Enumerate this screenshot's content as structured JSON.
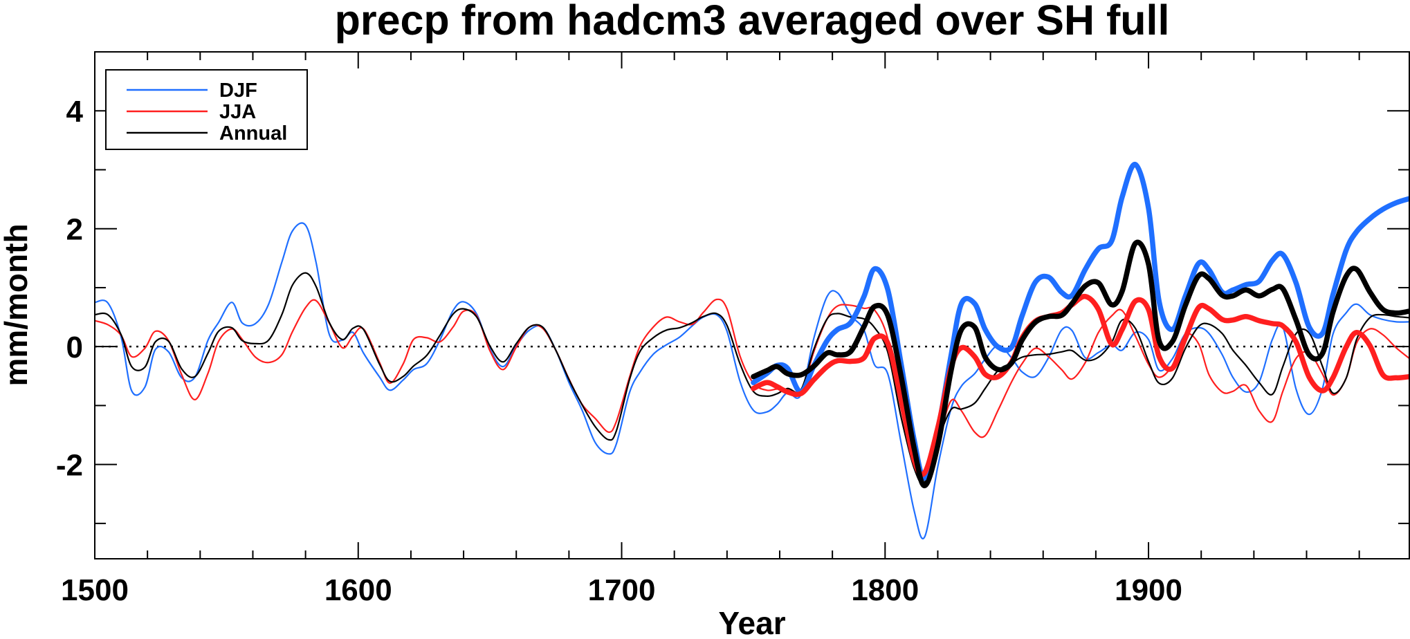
{
  "chart_data": {
    "type": "line",
    "title": "precp from hadcm3 averaged over SH full",
    "xlabel": "Year",
    "ylabel": "mm/month",
    "xlim": [
      1500,
      1999
    ],
    "ylim": [
      -3.6,
      5.0
    ],
    "x_ticks": [
      1500,
      1600,
      1700,
      1800,
      1900
    ],
    "y_ticks": [
      -2,
      0,
      2,
      4
    ],
    "zero_line": "dotted",
    "legend": "top-left",
    "legend_entries": [
      "DJF",
      "JJA",
      "Annual"
    ],
    "colors": {
      "DJF": "#1f6fff",
      "JJA": "#ff1f1f",
      "Annual": "#000000"
    },
    "series": [
      {
        "name": "DJF",
        "style": "thin",
        "color": "#1f6fff",
        "x": [
          1500,
          1505,
          1510,
          1514,
          1519,
          1523,
          1528,
          1533,
          1538,
          1543,
          1547,
          1552,
          1556,
          1561,
          1566,
          1571,
          1575,
          1580,
          1584,
          1589,
          1594,
          1598,
          1602,
          1608,
          1612,
          1617,
          1621,
          1626,
          1631,
          1636,
          1640,
          1645,
          1650,
          1655,
          1660,
          1665,
          1670,
          1675,
          1680,
          1685,
          1690,
          1695,
          1698,
          1703,
          1707,
          1712,
          1717,
          1722,
          1727,
          1731,
          1736,
          1740,
          1745,
          1750,
          1755,
          1759,
          1763,
          1768,
          1773,
          1778,
          1782,
          1787,
          1792,
          1796,
          1801,
          1806,
          1811,
          1815,
          1820,
          1825,
          1829,
          1834,
          1838,
          1843,
          1848,
          1852,
          1857,
          1862,
          1867,
          1871,
          1876,
          1881,
          1886,
          1890,
          1895,
          1900,
          1904,
          1909,
          1914,
          1919,
          1923,
          1928,
          1932,
          1937,
          1942,
          1947,
          1951,
          1956,
          1961,
          1966,
          1970,
          1975,
          1979,
          1984,
          1989,
          1994,
          1999
        ],
        "values": [
          0.75,
          0.74,
          0.16,
          -0.75,
          -0.69,
          -0.05,
          -0.09,
          -0.53,
          -0.52,
          0.11,
          0.41,
          0.75,
          0.4,
          0.39,
          0.72,
          1.43,
          1.96,
          2.06,
          1.43,
          0.21,
          0.11,
          0.24,
          -0.11,
          -0.51,
          -0.74,
          -0.57,
          -0.39,
          -0.29,
          0.11,
          0.61,
          0.76,
          0.55,
          -0.04,
          -0.34,
          0.01,
          0.28,
          0.33,
          -0.06,
          -0.61,
          -1.08,
          -1.63,
          -1.82,
          -1.65,
          -0.78,
          -0.43,
          -0.13,
          0.03,
          0.16,
          0.36,
          0.5,
          0.54,
          0.26,
          -0.6,
          -1.08,
          -1.11,
          -0.98,
          -0.78,
          -0.82,
          0.15,
          0.85,
          0.91,
          0.53,
          0.28,
          -0.31,
          -0.46,
          -1.61,
          -2.78,
          -3.23,
          -2.04,
          -1.06,
          -0.67,
          -0.46,
          -0.21,
          0.02,
          -0.19,
          -0.43,
          -0.51,
          -0.19,
          0.28,
          0.27,
          -0.19,
          -0.1,
          0.03,
          -0.06,
          0.24,
          0.12,
          -0.4,
          -0.21,
          0.22,
          0.32,
          0.22,
          -0.14,
          -0.52,
          -0.77,
          -0.6,
          0.12,
          0.33,
          -0.72,
          -1.15,
          -0.72,
          0.21,
          0.57,
          0.72,
          0.54,
          0.46,
          0.42,
          0.42
        ]
      },
      {
        "name": "JJA",
        "style": "thin",
        "color": "#ff1f1f",
        "x": [
          1500,
          1505,
          1510,
          1514,
          1519,
          1523,
          1528,
          1533,
          1538,
          1543,
          1547,
          1552,
          1556,
          1561,
          1566,
          1571,
          1575,
          1580,
          1584,
          1589,
          1594,
          1598,
          1602,
          1608,
          1612,
          1617,
          1621,
          1626,
          1631,
          1636,
          1640,
          1645,
          1650,
          1655,
          1660,
          1665,
          1670,
          1675,
          1680,
          1685,
          1690,
          1695,
          1698,
          1703,
          1707,
          1712,
          1717,
          1722,
          1727,
          1731,
          1736,
          1740,
          1745,
          1750,
          1755,
          1759,
          1763,
          1768,
          1773,
          1778,
          1782,
          1787,
          1792,
          1796,
          1801,
          1806,
          1811,
          1815,
          1820,
          1825,
          1829,
          1834,
          1838,
          1843,
          1848,
          1852,
          1857,
          1862,
          1867,
          1871,
          1876,
          1881,
          1886,
          1890,
          1895,
          1900,
          1904,
          1909,
          1914,
          1919,
          1923,
          1928,
          1932,
          1937,
          1942,
          1947,
          1951,
          1956,
          1961,
          1966,
          1970,
          1975,
          1979,
          1984,
          1989,
          1994,
          1999
        ],
        "values": [
          0.44,
          0.37,
          0.19,
          -0.17,
          -0.03,
          0.26,
          0.1,
          -0.48,
          -0.9,
          -0.45,
          0.09,
          0.3,
          0.12,
          -0.18,
          -0.27,
          -0.14,
          0.25,
          0.66,
          0.78,
          0.4,
          -0.02,
          0.18,
          0.3,
          -0.26,
          -0.62,
          -0.3,
          0.12,
          0.15,
          0.08,
          0.33,
          0.6,
          0.52,
          -0.07,
          -0.39,
          -0.01,
          0.33,
          0.31,
          -0.06,
          -0.55,
          -0.98,
          -1.22,
          -1.45,
          -1.27,
          -0.52,
          0.01,
          0.33,
          0.5,
          0.42,
          0.38,
          0.58,
          0.8,
          0.64,
          -0.17,
          -0.62,
          -0.74,
          -0.72,
          -0.73,
          -0.79,
          -0.08,
          0.47,
          0.69,
          0.7,
          0.65,
          0.62,
          0.14,
          -1.04,
          -1.91,
          -2.24,
          -1.61,
          -0.92,
          -1.09,
          -1.45,
          -1.51,
          -1.07,
          -0.6,
          -0.29,
          -0.03,
          -0.17,
          -0.39,
          -0.55,
          -0.27,
          0.24,
          0.52,
          0.61,
          0.18,
          -0.3,
          -0.52,
          -0.32,
          0.2,
          0.05,
          -0.48,
          -0.77,
          -0.76,
          -0.66,
          -1.09,
          -1.27,
          -0.76,
          -0.2,
          -0.11,
          -0.46,
          -0.82,
          -0.54,
          0.06,
          0.3,
          0.2,
          -0.02,
          -0.2
        ]
      },
      {
        "name": "Annual",
        "style": "thin",
        "color": "#000000",
        "x": [
          1500,
          1505,
          1510,
          1514,
          1519,
          1523,
          1528,
          1533,
          1538,
          1543,
          1547,
          1552,
          1556,
          1561,
          1566,
          1571,
          1575,
          1580,
          1584,
          1589,
          1594,
          1598,
          1602,
          1608,
          1612,
          1617,
          1621,
          1626,
          1631,
          1636,
          1640,
          1645,
          1650,
          1655,
          1660,
          1665,
          1670,
          1675,
          1680,
          1685,
          1690,
          1695,
          1698,
          1703,
          1707,
          1712,
          1717,
          1722,
          1727,
          1731,
          1736,
          1740,
          1745,
          1750,
          1755,
          1759,
          1763,
          1768,
          1773,
          1778,
          1782,
          1787,
          1792,
          1796,
          1801,
          1806,
          1811,
          1815,
          1820,
          1825,
          1829,
          1834,
          1838,
          1843,
          1848,
          1852,
          1857,
          1862,
          1867,
          1871,
          1876,
          1881,
          1886,
          1890,
          1895,
          1900,
          1904,
          1909,
          1914,
          1919,
          1923,
          1928,
          1932,
          1937,
          1942,
          1947,
          1951,
          1956,
          1961,
          1966,
          1970,
          1975,
          1979,
          1984,
          1989,
          1994,
          1999
        ],
        "values": [
          0.54,
          0.54,
          0.2,
          -0.34,
          -0.35,
          0.08,
          0.09,
          -0.38,
          -0.51,
          -0.11,
          0.26,
          0.32,
          0.1,
          0.05,
          0.11,
          0.54,
          1.04,
          1.25,
          1.02,
          0.41,
          0.12,
          0.31,
          0.29,
          -0.29,
          -0.59,
          -0.51,
          -0.33,
          -0.15,
          0.19,
          0.55,
          0.64,
          0.5,
          0.01,
          -0.26,
          0.05,
          0.33,
          0.33,
          -0.06,
          -0.56,
          -0.99,
          -1.36,
          -1.58,
          -1.43,
          -0.56,
          -0.08,
          0.15,
          0.28,
          0.32,
          0.41,
          0.51,
          0.56,
          0.36,
          -0.3,
          -0.76,
          -0.84,
          -0.8,
          -0.71,
          -0.74,
          -0.04,
          0.47,
          0.56,
          0.5,
          0.47,
          0.32,
          -0.09,
          -1.18,
          -2.06,
          -2.3,
          -1.6,
          -1.07,
          -1.06,
          -0.96,
          -0.71,
          -0.4,
          -0.28,
          -0.18,
          -0.14,
          -0.13,
          -0.09,
          -0.07,
          -0.23,
          -0.18,
          0.07,
          0.45,
          0.31,
          -0.25,
          -0.62,
          -0.54,
          -0.03,
          0.34,
          0.38,
          0.22,
          -0.06,
          -0.32,
          -0.61,
          -0.81,
          -0.34,
          0.22,
          0.23,
          -0.33,
          -0.79,
          -0.54,
          0.12,
          0.49,
          0.54,
          0.51,
          0.49
        ]
      },
      {
        "name": "DJF",
        "style": "thick",
        "color": "#1f6fff",
        "x": [
          1750,
          1755,
          1759,
          1763,
          1768,
          1773,
          1778,
          1782,
          1787,
          1792,
          1796,
          1801,
          1806,
          1811,
          1815,
          1820,
          1825,
          1829,
          1834,
          1838,
          1843,
          1848,
          1852,
          1857,
          1862,
          1867,
          1871,
          1876,
          1881,
          1886,
          1890,
          1895,
          1900,
          1904,
          1909,
          1914,
          1919,
          1923,
          1928,
          1932,
          1937,
          1942,
          1947,
          1951,
          1956,
          1961,
          1966,
          1970,
          1975,
          1979,
          1984,
          1989,
          1994,
          1999
        ],
        "values": [
          -0.61,
          -0.46,
          -0.32,
          -0.37,
          -0.77,
          -0.32,
          0.1,
          0.29,
          0.41,
          0.85,
          1.32,
          0.97,
          -0.27,
          -1.58,
          -2.23,
          -1.43,
          -0.16,
          0.73,
          0.73,
          0.29,
          -0.01,
          -0.01,
          0.52,
          1.09,
          1.18,
          0.92,
          0.87,
          1.31,
          1.66,
          1.79,
          2.54,
          3.09,
          2.35,
          0.77,
          0.29,
          0.86,
          1.41,
          1.3,
          0.92,
          0.96,
          1.05,
          1.11,
          1.46,
          1.56,
          1.08,
          0.33,
          0.22,
          0.88,
          1.63,
          1.95,
          2.17,
          2.33,
          2.44,
          2.51
        ]
      },
      {
        "name": "JJA",
        "style": "thick",
        "color": "#ff1f1f",
        "x": [
          1750,
          1755,
          1759,
          1763,
          1768,
          1773,
          1778,
          1782,
          1787,
          1792,
          1796,
          1801,
          1806,
          1811,
          1815,
          1820,
          1825,
          1829,
          1834,
          1838,
          1843,
          1848,
          1852,
          1857,
          1862,
          1867,
          1871,
          1876,
          1881,
          1886,
          1890,
          1895,
          1900,
          1904,
          1909,
          1914,
          1919,
          1923,
          1928,
          1932,
          1937,
          1942,
          1947,
          1951,
          1956,
          1961,
          1966,
          1970,
          1975,
          1979,
          1984,
          1989,
          1994,
          1999
        ],
        "values": [
          -0.71,
          -0.61,
          -0.68,
          -0.77,
          -0.8,
          -0.56,
          -0.34,
          -0.24,
          -0.25,
          -0.19,
          0.14,
          0.06,
          -0.88,
          -1.92,
          -2.14,
          -1.38,
          -0.36,
          -0.02,
          -0.17,
          -0.47,
          -0.51,
          -0.26,
          0.15,
          0.43,
          0.51,
          0.57,
          0.71,
          0.85,
          0.63,
          0.04,
          0.29,
          0.77,
          0.63,
          -0.17,
          -0.37,
          0.15,
          0.66,
          0.64,
          0.46,
          0.45,
          0.51,
          0.44,
          0.39,
          0.35,
          0.08,
          -0.52,
          -0.75,
          -0.53,
          -0.01,
          0.24,
          0.02,
          -0.48,
          -0.53,
          -0.51
        ]
      },
      {
        "name": "Annual",
        "style": "thick",
        "color": "#000000",
        "x": [
          1750,
          1755,
          1759,
          1763,
          1768,
          1773,
          1778,
          1782,
          1787,
          1792,
          1796,
          1801,
          1806,
          1811,
          1815,
          1820,
          1825,
          1829,
          1834,
          1838,
          1843,
          1848,
          1852,
          1857,
          1862,
          1867,
          1871,
          1876,
          1881,
          1886,
          1890,
          1895,
          1900,
          1904,
          1909,
          1914,
          1919,
          1923,
          1928,
          1932,
          1937,
          1942,
          1947,
          1951,
          1956,
          1961,
          1966,
          1970,
          1975,
          1979,
          1984,
          1989,
          1994,
          1999
        ],
        "values": [
          -0.51,
          -0.41,
          -0.34,
          -0.46,
          -0.48,
          -0.33,
          -0.11,
          -0.14,
          -0.08,
          0.34,
          0.68,
          0.53,
          -0.48,
          -1.72,
          -2.36,
          -1.68,
          -0.42,
          0.29,
          0.33,
          -0.18,
          -0.39,
          -0.28,
          0.11,
          0.41,
          0.51,
          0.53,
          0.73,
          1.03,
          1.08,
          0.71,
          0.94,
          1.75,
          1.4,
          0.1,
          0.08,
          0.7,
          1.2,
          1.15,
          0.87,
          0.86,
          0.96,
          0.86,
          0.97,
          0.98,
          0.45,
          -0.14,
          -0.12,
          0.58,
          1.19,
          1.31,
          0.93,
          0.63,
          0.57,
          0.6
        ]
      }
    ]
  }
}
